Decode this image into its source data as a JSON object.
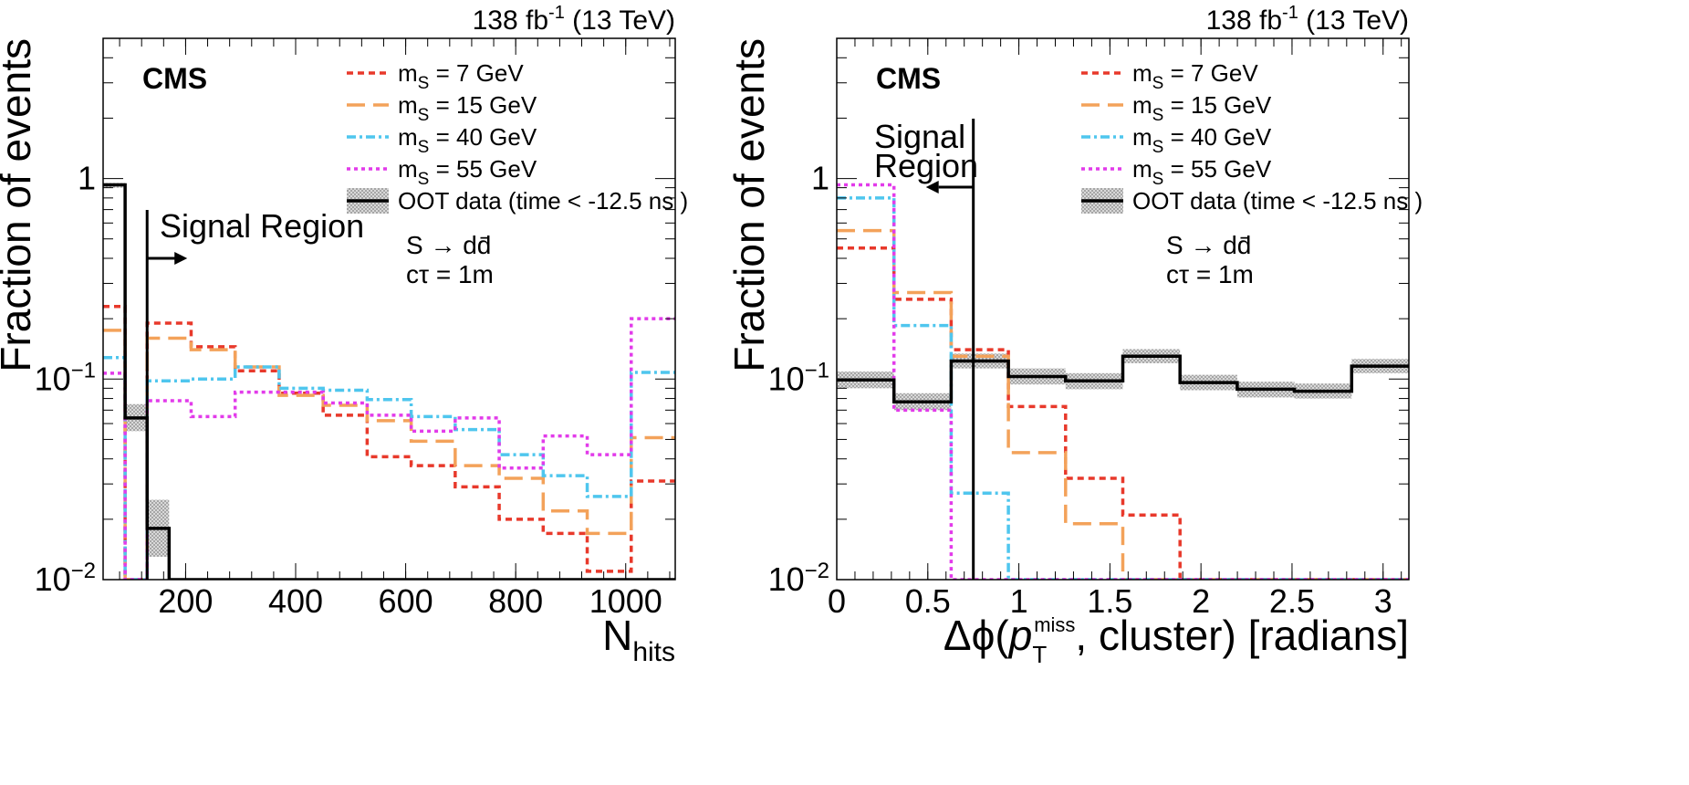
{
  "chart_data": [
    {
      "type": "step",
      "id": "nhits",
      "log_y": true,
      "xlim": [
        50,
        1090
      ],
      "ylim": [
        0.01,
        5
      ],
      "x_ticks": [
        200,
        400,
        600,
        800,
        1000
      ],
      "x_tick_labels": [
        "200",
        "400",
        "600",
        "800",
        "1000"
      ],
      "y_ticks": [
        0.01,
        0.1,
        1
      ],
      "y_tick_labels": [
        {
          "base": "10",
          "exp": "−2"
        },
        {
          "base": "10",
          "exp": "−1"
        },
        {
          "base": "1",
          "exp": ""
        }
      ],
      "ylabel": "Fraction of events",
      "xlabel": {
        "main": "N",
        "sub": "hits"
      },
      "lumi": {
        "prefix": "138 fb",
        "sup": "-1",
        "suffix": " (13 TeV)"
      },
      "experiment": "CMS",
      "process": "S → dd̄",
      "ctau": "cτ = 1m",
      "signal_region": {
        "label": "Signal Region",
        "boundary": 130,
        "direction": "right"
      },
      "legend": [
        {
          "name": "m",
          "sub": "S",
          "rest": " = 7 GeV",
          "color": "#e8392b",
          "dash": "7,5"
        },
        {
          "name": "m",
          "sub": "S",
          "rest": " = 15 GeV",
          "color": "#f3a25a",
          "dash": "20,9"
        },
        {
          "name": "m",
          "sub": "S",
          "rest": " = 40 GeV",
          "color": "#4fc6ee",
          "dash": "10,4,3,4"
        },
        {
          "name": "m",
          "sub": "S",
          "rest": " = 55 GeV",
          "color": "#e23bea",
          "dash": "4,4"
        },
        {
          "name": "OOT data (time < -12.5 ns )",
          "sub": "",
          "rest": "",
          "color": "#000000",
          "dash": "",
          "band": true
        }
      ],
      "edges": [
        50,
        90,
        130,
        170,
        210,
        290,
        370,
        450,
        530,
        610,
        690,
        770,
        850,
        930,
        1010,
        1090
      ],
      "series": [
        {
          "name": "m_S = 7 GeV",
          "values": [
            0.23,
            null,
            0.19,
            0.19,
            0.145,
            0.11,
            0.085,
            0.066,
            0.041,
            0.037,
            0.029,
            0.02,
            0.017,
            0.011,
            0.031
          ]
        },
        {
          "name": "m_S = 15 GeV",
          "values": [
            0.175,
            null,
            0.16,
            0.16,
            0.14,
            0.115,
            0.083,
            0.074,
            0.062,
            0.049,
            0.037,
            0.032,
            0.022,
            0.017,
            0.051
          ]
        },
        {
          "name": "m_S = 40 GeV",
          "values": [
            0.128,
            null,
            0.098,
            0.098,
            0.1,
            0.115,
            0.09,
            0.088,
            0.079,
            0.065,
            0.056,
            0.042,
            0.033,
            0.026,
            0.108
          ]
        },
        {
          "name": "m_S = 55 GeV",
          "values": [
            0.107,
            null,
            0.078,
            0.078,
            0.065,
            0.086,
            0.086,
            0.076,
            0.066,
            0.055,
            0.064,
            0.036,
            0.052,
            0.042,
            0.2
          ]
        },
        {
          "name": "OOT data (time < -12.5 ns )",
          "values": [
            0.93,
            0.064,
            0.018,
            0.01,
            null,
            null,
            null,
            null,
            null,
            null,
            null,
            null,
            null,
            null,
            null
          ],
          "band": [
            [
              0.9,
              0.95
            ],
            [
              0.055,
              0.075
            ],
            [
              0.013,
              0.025
            ],
            null,
            null,
            null,
            null,
            null,
            null,
            null,
            null,
            null,
            null,
            null,
            null
          ]
        }
      ]
    },
    {
      "type": "step",
      "id": "dphi",
      "log_y": true,
      "xlim": [
        0,
        3.1416
      ],
      "ylim": [
        0.01,
        5
      ],
      "x_ticks": [
        0,
        0.5,
        1,
        1.5,
        2,
        2.5,
        3
      ],
      "x_tick_labels": [
        "0",
        "0.5",
        "1",
        "1.5",
        "2",
        "2.5",
        "3"
      ],
      "y_ticks": [
        0.01,
        0.1,
        1
      ],
      "y_tick_labels": [
        {
          "base": "10",
          "exp": "−2"
        },
        {
          "base": "10",
          "exp": "−1"
        },
        {
          "base": "1",
          "exp": ""
        }
      ],
      "ylabel": "Fraction of events",
      "xlabel": {
        "main": "Δϕ(",
        "vec": "p",
        "sub": "T",
        "sup": "miss",
        "rest": ", cluster) [radians]"
      },
      "lumi": {
        "prefix": "138 fb",
        "sup": "-1",
        "suffix": " (13 TeV)"
      },
      "experiment": "CMS",
      "process": "S → dd̄",
      "ctau": "cτ = 1m",
      "signal_region": {
        "label1": "Signal",
        "label2": "Region",
        "boundary": 0.75,
        "direction": "left"
      },
      "legend": [
        {
          "name": "m",
          "sub": "S",
          "rest": " = 7 GeV",
          "color": "#e8392b",
          "dash": "7,5"
        },
        {
          "name": "m",
          "sub": "S",
          "rest": " = 15 GeV",
          "color": "#f3a25a",
          "dash": "20,9"
        },
        {
          "name": "m",
          "sub": "S",
          "rest": " = 40 GeV",
          "color": "#4fc6ee",
          "dash": "10,4,3,4"
        },
        {
          "name": "m",
          "sub": "S",
          "rest": " = 55 GeV",
          "color": "#e23bea",
          "dash": "4,4"
        },
        {
          "name": "OOT data (time < -12.5 ns )",
          "sub": "",
          "rest": "",
          "color": "#000000",
          "dash": "",
          "band": true
        }
      ],
      "edges": [
        0,
        0.3142,
        0.6283,
        0.9425,
        1.2566,
        1.5708,
        1.885,
        2.1991,
        2.5133,
        2.8274,
        3.1416
      ],
      "series": [
        {
          "name": "m_S = 7 GeV",
          "values": [
            0.45,
            0.25,
            0.14,
            0.073,
            0.032,
            0.021,
            0.01,
            0.01,
            0.01,
            0.01
          ]
        },
        {
          "name": "m_S = 15 GeV",
          "values": [
            0.55,
            0.27,
            0.13,
            0.043,
            0.019,
            0.01,
            0.01,
            0.01,
            0.01,
            0.01
          ]
        },
        {
          "name": "m_S = 40 GeV",
          "values": [
            0.8,
            0.185,
            0.027,
            0.01,
            0.01,
            0.01,
            0.01,
            0.01,
            0.01,
            0.01
          ]
        },
        {
          "name": "m_S = 55 GeV",
          "values": [
            0.93,
            0.07,
            0.01,
            0.01,
            0.01,
            0.01,
            0.01,
            0.01,
            0.01,
            0.01
          ]
        },
        {
          "name": "OOT data (time < -12.5 ns )",
          "values": [
            0.099,
            0.077,
            0.123,
            0.103,
            0.098,
            0.13,
            0.096,
            0.089,
            0.087,
            0.116
          ],
          "band": [
            [
              0.09,
              0.109
            ],
            [
              0.07,
              0.085
            ],
            [
              0.113,
              0.134
            ],
            [
              0.094,
              0.113
            ],
            [
              0.089,
              0.107
            ],
            [
              0.12,
              0.141
            ],
            [
              0.088,
              0.105
            ],
            [
              0.081,
              0.097
            ],
            [
              0.08,
              0.095
            ],
            [
              0.107,
              0.126
            ]
          ]
        }
      ]
    }
  ]
}
